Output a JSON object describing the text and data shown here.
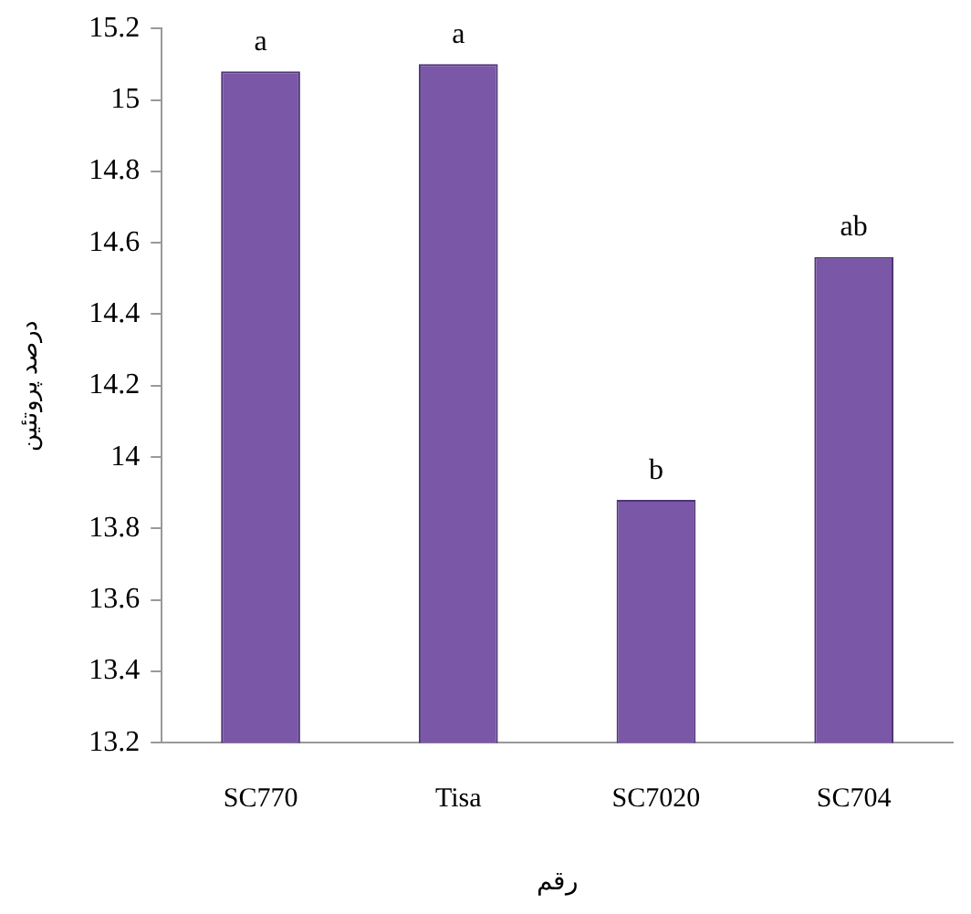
{
  "chart_data": {
    "type": "bar",
    "ylabel": "درصد پروتئین",
    "xlabel": "رقم",
    "categories": [
      "SC770",
      "Tisa",
      "SC7020",
      "SC704"
    ],
    "values": [
      15.08,
      15.1,
      13.88,
      14.56
    ],
    "color": "#7b57a8",
    "ylim": [
      13.2,
      15.2
    ],
    "yticks": [
      13.2,
      13.4,
      13.6,
      13.8,
      14,
      14.2,
      14.4,
      14.6,
      14.8,
      15,
      15.2
    ],
    "grid": false,
    "legend": false,
    "annotations": [
      {
        "text": "a",
        "x": "SC770",
        "y": 15.08
      },
      {
        "text": "a",
        "x": "Tisa",
        "y": 15.1
      },
      {
        "text": "b",
        "x": "SC7020",
        "y": 13.88
      },
      {
        "text": "ab",
        "x": "SC704",
        "y": 14.56
      }
    ]
  }
}
